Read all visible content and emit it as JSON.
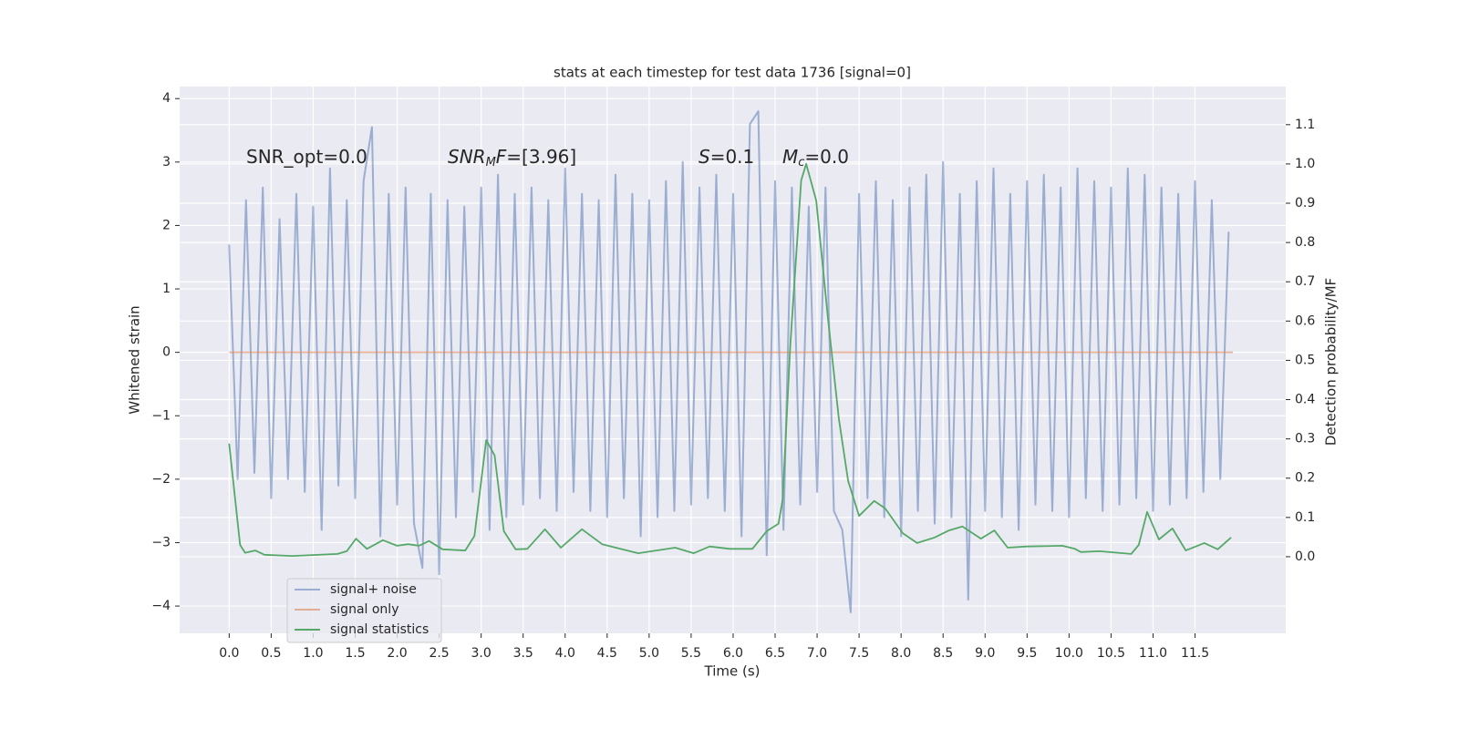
{
  "chart_data": {
    "type": "line",
    "title": "stats at each timestep for test data 1736 [signal=0]",
    "xlabel": "Time (s)",
    "ylabel": "Whitened strain",
    "y2label": "Detection probability/MF",
    "background": "#eaeaf2",
    "grid": true,
    "legend": "lower left",
    "xlim": [
      -0.59,
      12.58
    ],
    "ylim": [
      -4.43,
      4.19
    ],
    "y2lim": [
      -0.195,
      1.197
    ],
    "xticks": [
      {
        "value": 0,
        "label": "0.0"
      },
      {
        "value": 0.5,
        "label": "0.5"
      },
      {
        "value": 1,
        "label": "1.0"
      },
      {
        "value": 1.5,
        "label": "1.5"
      },
      {
        "value": 2,
        "label": "2.0"
      },
      {
        "value": 2.5,
        "label": "2.5"
      },
      {
        "value": 3,
        "label": "3.0"
      },
      {
        "value": 3.5,
        "label": "3.5"
      },
      {
        "value": 4,
        "label": "4.0"
      },
      {
        "value": 4.5,
        "label": "4.5"
      },
      {
        "value": 5,
        "label": "5.0"
      },
      {
        "value": 5.5,
        "label": "5.5"
      },
      {
        "value": 6,
        "label": "6.0"
      },
      {
        "value": 6.5,
        "label": "6.5"
      },
      {
        "value": 7,
        "label": "7.0"
      },
      {
        "value": 7.5,
        "label": "7.5"
      },
      {
        "value": 8,
        "label": "8.0"
      },
      {
        "value": 8.5,
        "label": "8.5"
      },
      {
        "value": 9,
        "label": "9.0"
      },
      {
        "value": 9.5,
        "label": "9.5"
      },
      {
        "value": 10,
        "label": "10.0"
      },
      {
        "value": 10.5,
        "label": "10.5"
      },
      {
        "value": 11,
        "label": "11.0"
      },
      {
        "value": 11.5,
        "label": "11.5"
      }
    ],
    "yticks": [
      {
        "value": -4,
        "label": "−4"
      },
      {
        "value": -3,
        "label": "−3"
      },
      {
        "value": -2,
        "label": "−2"
      },
      {
        "value": -1,
        "label": "−1"
      },
      0,
      1,
      2,
      3,
      4
    ],
    "y2ticks": [
      {
        "value": 0,
        "label": "0.0"
      },
      {
        "value": 0.1,
        "label": "0.1"
      },
      {
        "value": 0.2,
        "label": "0.2"
      },
      {
        "value": 0.3,
        "label": "0.3"
      },
      {
        "value": 0.4,
        "label": "0.4"
      },
      {
        "value": 0.5,
        "label": "0.5"
      },
      {
        "value": 0.6,
        "label": "0.6"
      },
      {
        "value": 0.7,
        "label": "0.7"
      },
      {
        "value": 0.8,
        "label": "0.8"
      },
      {
        "value": 0.9,
        "label": "0.9"
      },
      {
        "value": 1.0,
        "label": "1.0"
      },
      {
        "value": 1.1,
        "label": "1.1"
      }
    ],
    "annotations": [
      [
        {
          "text": "SNR_opt=0.0",
          "style": "normal"
        }
      ],
      [
        {
          "text": "SNR",
          "style": "italic"
        },
        {
          "text": "M",
          "style": "sub"
        },
        {
          "text": "F",
          "style": "italic"
        },
        {
          "text": "=[3.96]",
          "style": "normal"
        }
      ],
      [
        {
          "text": "S",
          "style": "italic"
        },
        {
          "text": "=0.1",
          "style": "normal"
        }
      ],
      [
        {
          "text": "M",
          "style": "italic"
        },
        {
          "text": "c",
          "style": "sub"
        },
        {
          "text": "=0.0",
          "style": "normal"
        }
      ]
    ],
    "series": [
      {
        "name": "signal+ noise",
        "color": "#4c72b0",
        "opacity": 0.5,
        "x": [
          0.0,
          0.1,
          0.2,
          0.3,
          0.4,
          0.5,
          0.6,
          0.7,
          0.8,
          0.9,
          1.0,
          1.1,
          1.2,
          1.3,
          1.4,
          1.5,
          1.6,
          1.7,
          1.8,
          1.9,
          2.0,
          2.1,
          2.2,
          2.3,
          2.4,
          2.5,
          2.6,
          2.7,
          2.8,
          2.9,
          3.0,
          3.1,
          3.2,
          3.3,
          3.4,
          3.5,
          3.6,
          3.7,
          3.8,
          3.9,
          4.0,
          4.1,
          4.2,
          4.3,
          4.4,
          4.5,
          4.6,
          4.7,
          4.8,
          4.9,
          5.0,
          5.1,
          5.2,
          5.3,
          5.4,
          5.5,
          5.6,
          5.7,
          5.8,
          5.9,
          6.0,
          6.1,
          6.2,
          6.3,
          6.4,
          6.5,
          6.6,
          6.7,
          6.8,
          6.9,
          7.0,
          7.1,
          7.2,
          7.3,
          7.4,
          7.5,
          7.6,
          7.7,
          7.8,
          7.9,
          8.0,
          8.1,
          8.2,
          8.3,
          8.4,
          8.5,
          8.6,
          8.7,
          8.8,
          8.9,
          9.0,
          9.1,
          9.2,
          9.3,
          9.4,
          9.5,
          9.6,
          9.7,
          9.8,
          9.9,
          10.0,
          10.1,
          10.2,
          10.3,
          10.4,
          10.5,
          10.6,
          10.7,
          10.8,
          10.9,
          11.0,
          11.1,
          11.2,
          11.3,
          11.4,
          11.5,
          11.6,
          11.7,
          11.8,
          11.9
        ],
        "values": [
          1.7,
          -2.0,
          2.4,
          -1.9,
          2.6,
          -2.3,
          2.1,
          -2.0,
          2.5,
          -2.2,
          2.3,
          -2.8,
          2.9,
          -2.1,
          2.4,
          -2.3,
          2.7,
          3.55,
          -2.9,
          2.5,
          -2.4,
          2.6,
          -2.7,
          -3.4,
          2.5,
          -3.5,
          2.4,
          -2.6,
          2.3,
          -2.2,
          2.6,
          -2.8,
          2.8,
          -2.6,
          2.5,
          -2.4,
          2.6,
          -2.3,
          2.4,
          -2.5,
          2.9,
          -2.2,
          2.5,
          -2.5,
          2.4,
          -2.6,
          2.8,
          -2.3,
          2.5,
          -2.9,
          2.4,
          -2.6,
          2.7,
          -2.5,
          3.0,
          -2.4,
          2.6,
          -2.3,
          2.8,
          -2.5,
          2.5,
          -2.9,
          3.6,
          3.8,
          -3.2,
          2.7,
          -2.8,
          2.6,
          -2.4,
          2.3,
          -2.2,
          2.6,
          -2.5,
          -2.8,
          -4.1,
          2.5,
          -2.3,
          2.7,
          -2.6,
          2.4,
          -2.9,
          2.6,
          -2.5,
          2.8,
          -2.7,
          3.0,
          -2.6,
          2.5,
          -3.9,
          2.7,
          -2.5,
          2.9,
          -2.6,
          2.5,
          -2.8,
          2.7,
          -2.4,
          2.8,
          -2.5,
          2.6,
          -2.6,
          2.9,
          -2.3,
          2.7,
          -2.5,
          2.6,
          -2.4,
          2.9,
          -2.3,
          2.8,
          -2.5,
          2.6,
          -2.4,
          2.5,
          -2.3,
          2.7,
          -2.2,
          2.4,
          -2.0,
          1.9
        ]
      },
      {
        "name": "signal only",
        "color": "#dd8452",
        "opacity": 0.6,
        "x": [
          0.0,
          11.95
        ],
        "values": [
          0,
          0
        ]
      },
      {
        "name": "signal statistics",
        "color": "#55a868",
        "opacity": 1,
        "axis": "y2",
        "x": [
          0,
          0.13,
          0.19,
          0.31,
          0.42,
          0.75,
          1.29,
          1.4,
          1.51,
          1.64,
          1.83,
          2.0,
          2.13,
          2.26,
          2.38,
          2.54,
          2.81,
          2.92,
          3.06,
          3.16,
          3.27,
          3.41,
          3.55,
          3.76,
          3.95,
          4.2,
          4.44,
          4.87,
          5.31,
          5.53,
          5.72,
          5.96,
          6.23,
          6.4,
          6.54,
          6.59,
          6.68,
          6.81,
          6.87,
          6.99,
          7.13,
          7.26,
          7.37,
          7.5,
          7.68,
          7.81,
          8.02,
          8.19,
          8.4,
          8.57,
          8.73,
          8.95,
          9.11,
          9.27,
          9.49,
          9.92,
          10.07,
          10.14,
          10.36,
          10.74,
          10.83,
          10.93,
          11.07,
          11.23,
          11.39,
          11.61,
          11.77,
          11.93
        ],
        "values": [
          0.288,
          0.03,
          0.01,
          0.016,
          0.005,
          0.002,
          0.007,
          0.014,
          0.046,
          0.02,
          0.042,
          0.028,
          0.032,
          0.028,
          0.04,
          0.019,
          0.016,
          0.053,
          0.297,
          0.258,
          0.065,
          0.019,
          0.02,
          0.07,
          0.023,
          0.07,
          0.032,
          0.009,
          0.023,
          0.009,
          0.026,
          0.02,
          0.02,
          0.065,
          0.084,
          0.146,
          0.536,
          0.958,
          1.0,
          0.907,
          0.606,
          0.35,
          0.193,
          0.104,
          0.142,
          0.123,
          0.06,
          0.035,
          0.049,
          0.067,
          0.077,
          0.046,
          0.067,
          0.023,
          0.026,
          0.028,
          0.02,
          0.012,
          0.014,
          0.007,
          0.03,
          0.114,
          0.044,
          0.072,
          0.016,
          0.035,
          0.019,
          0.049
        ]
      }
    ]
  }
}
